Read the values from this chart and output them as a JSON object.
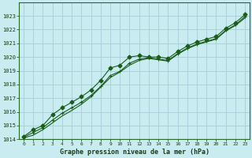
{
  "title": "Graphe pression niveau de la mer (hPa)",
  "background_color": "#c8ecf0",
  "grid_color": "#a8ccd8",
  "line_color": "#1a5c1a",
  "x_hours": [
    0,
    1,
    2,
    3,
    4,
    5,
    6,
    7,
    8,
    9,
    10,
    11,
    12,
    13,
    14,
    15,
    16,
    17,
    18,
    19,
    20,
    21,
    22,
    23
  ],
  "line1_values": [
    1014.2,
    1014.7,
    1015.0,
    1015.8,
    1016.3,
    1016.7,
    1017.1,
    1017.6,
    1018.3,
    1019.2,
    1019.4,
    1020.0,
    1020.1,
    1020.0,
    1020.0,
    1019.9,
    1020.4,
    1020.8,
    1021.1,
    1021.3,
    1021.5,
    1022.1,
    1022.5,
    1023.1
  ],
  "line2_values": [
    1014.15,
    1014.5,
    1014.85,
    1015.4,
    1015.9,
    1016.3,
    1016.7,
    1017.2,
    1017.85,
    1018.65,
    1018.95,
    1019.55,
    1019.85,
    1019.95,
    1019.85,
    1019.75,
    1020.25,
    1020.65,
    1020.95,
    1021.15,
    1021.35,
    1021.95,
    1022.35,
    1022.95
  ],
  "line3_values": [
    1014.1,
    1014.3,
    1014.7,
    1015.2,
    1015.7,
    1016.1,
    1016.55,
    1017.1,
    1017.8,
    1018.5,
    1018.9,
    1019.4,
    1019.75,
    1019.9,
    1019.8,
    1019.7,
    1020.2,
    1020.6,
    1020.9,
    1021.1,
    1021.3,
    1021.9,
    1022.3,
    1022.85
  ],
  "ylim": [
    1014,
    1024
  ],
  "yticks": [
    1014,
    1015,
    1016,
    1017,
    1018,
    1019,
    1020,
    1021,
    1022,
    1023
  ],
  "xlim": [
    -0.5,
    23.5
  ],
  "xticks": [
    0,
    1,
    2,
    3,
    4,
    5,
    6,
    7,
    8,
    9,
    10,
    11,
    12,
    13,
    14,
    15,
    16,
    17,
    18,
    19,
    20,
    21,
    22,
    23
  ],
  "figsize": [
    3.2,
    2.0
  ],
  "dpi": 100
}
